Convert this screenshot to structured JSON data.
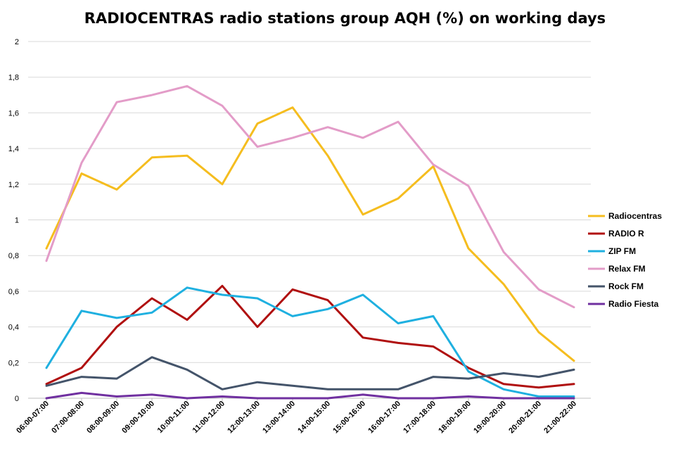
{
  "chart_data": {
    "type": "line",
    "title": "RADIOCENTRAS radio stations group AQH (%) on working days",
    "xlabel": "",
    "ylabel": "",
    "ylim": [
      0,
      2
    ],
    "yticks": [
      "0",
      "0,2",
      "0,4",
      "0,6",
      "0,8",
      "1",
      "1,2",
      "1,4",
      "1,6",
      "1,8",
      "2"
    ],
    "grid": true,
    "legend_position": "right",
    "categories": [
      "06:00-07:00",
      "07:00-08:00",
      "08:00-09:00",
      "09:00-10:00",
      "10:00-11:00",
      "11:00-12:00",
      "12:00-13:00",
      "13:00-14:00",
      "14:00-15:00",
      "15:00-16:00",
      "16:00-17:00",
      "17:00-18:00",
      "18:00-19:00",
      "19:00-20:00",
      "20:00-21:00",
      "21:00-22:00"
    ],
    "series": [
      {
        "name": "Radiocentras",
        "color": "#F5BD1F",
        "values": [
          0.84,
          1.26,
          1.17,
          1.35,
          1.36,
          1.2,
          1.54,
          1.63,
          1.36,
          1.03,
          1.12,
          1.3,
          0.84,
          0.64,
          0.37,
          0.21
        ]
      },
      {
        "name": "RADIO R",
        "color": "#B01010",
        "values": [
          0.08,
          0.17,
          0.4,
          0.56,
          0.44,
          0.63,
          0.4,
          0.61,
          0.55,
          0.34,
          0.31,
          0.29,
          0.17,
          0.08,
          0.06,
          0.08
        ]
      },
      {
        "name": "ZIP FM",
        "color": "#1FB0E0",
        "values": [
          0.17,
          0.49,
          0.45,
          0.48,
          0.62,
          0.58,
          0.56,
          0.46,
          0.5,
          0.58,
          0.42,
          0.46,
          0.15,
          0.05,
          0.01,
          0.01
        ]
      },
      {
        "name": "Relax FM",
        "color": "#E39CC8",
        "values": [
          0.77,
          1.32,
          1.66,
          1.7,
          1.75,
          1.64,
          1.41,
          1.46,
          1.52,
          1.46,
          1.55,
          1.31,
          1.19,
          0.82,
          0.61,
          0.51
        ]
      },
      {
        "name": "Rock FM",
        "color": "#44546A",
        "values": [
          0.07,
          0.12,
          0.11,
          0.23,
          0.16,
          0.05,
          0.09,
          0.07,
          0.05,
          0.05,
          0.05,
          0.12,
          0.11,
          0.14,
          0.12,
          0.16
        ]
      },
      {
        "name": "Radio Fiesta",
        "color": "#7030A0",
        "values": [
          0.0,
          0.03,
          0.01,
          0.02,
          0.0,
          0.01,
          0.0,
          0.0,
          0.0,
          0.02,
          0.0,
          0.0,
          0.01,
          0.0,
          0.0,
          0.0
        ]
      }
    ]
  }
}
